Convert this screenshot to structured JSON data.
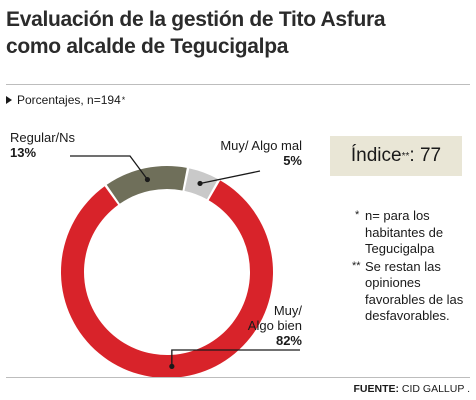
{
  "title": {
    "line1": "Evaluación de la gestión de  Tito Asfura",
    "line2": "como alcalde de Tegucigalpa"
  },
  "subtitle": "Porcentajes, n=194",
  "subtitle_mark": "*",
  "index": {
    "label": "Índice",
    "mark": "**",
    "value": ": 77"
  },
  "notes": [
    {
      "mark": "*",
      "text": "n= para los habitantes de Tegucigalpa"
    },
    {
      "mark": "**",
      "text": "Se restan las opiniones favorables de las desfavorables."
    }
  ],
  "source": {
    "label": "FUENTE:",
    "value": " CID GALLUP ."
  },
  "chart_data": {
    "type": "pie",
    "donut": true,
    "categories": [
      "Regular/Ns",
      "Muy/ Algo mal",
      "Muy/ Algo bien"
    ],
    "values": [
      13,
      5,
      82
    ],
    "display": [
      {
        "label": "Regular/Ns",
        "pct": "13%"
      },
      {
        "label": "Muy/ Algo mal",
        "pct": "5%"
      },
      {
        "label_line1": "Muy/",
        "label_line2": "Algo bien",
        "pct": "82%"
      }
    ],
    "colors": [
      "#6f6f5a",
      "#c9c9c9",
      "#d8232a"
    ],
    "unit": "%"
  }
}
